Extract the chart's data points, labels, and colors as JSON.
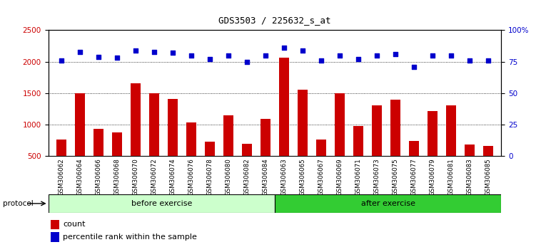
{
  "title": "GDS3503 / 225632_s_at",
  "categories": [
    "GSM306062",
    "GSM306064",
    "GSM306066",
    "GSM306068",
    "GSM306070",
    "GSM306072",
    "GSM306074",
    "GSM306076",
    "GSM306078",
    "GSM306080",
    "GSM306082",
    "GSM306084",
    "GSM306063",
    "GSM306065",
    "GSM306067",
    "GSM306069",
    "GSM306071",
    "GSM306073",
    "GSM306075",
    "GSM306077",
    "GSM306079",
    "GSM306081",
    "GSM306083",
    "GSM306085"
  ],
  "counts": [
    760,
    1500,
    940,
    880,
    1660,
    1500,
    1410,
    1040,
    730,
    1150,
    700,
    1090,
    2070,
    1560,
    760,
    1500,
    980,
    1310,
    1400,
    740,
    1220,
    1310,
    690,
    660
  ],
  "percentiles": [
    76,
    83,
    79,
    78,
    84,
    83,
    82,
    80,
    77,
    80,
    75,
    80,
    86,
    84,
    76,
    80,
    77,
    80,
    81,
    71,
    80,
    80,
    76,
    76
  ],
  "bar_color": "#cc0000",
  "dot_color": "#0000cc",
  "left_ylim": [
    500,
    2500
  ],
  "right_ylim": [
    0,
    100
  ],
  "left_yticks": [
    500,
    1000,
    1500,
    2000,
    2500
  ],
  "right_yticks": [
    0,
    25,
    50,
    75,
    100
  ],
  "right_yticklabels": [
    "0",
    "25",
    "50",
    "75",
    "100%"
  ],
  "grid_values": [
    1000,
    1500,
    2000
  ],
  "n_before": 12,
  "n_after": 12,
  "before_label": "before exercise",
  "after_label": "after exercise",
  "protocol_label": "protocol",
  "before_color_light": "#ccffcc",
  "after_color": "#33cc33",
  "legend_count_label": "count",
  "legend_pct_label": "percentile rank within the sample",
  "bg_color": "#ffffff",
  "plot_bg": "#ffffff",
  "tick_area_bg": "#c8c8c8"
}
